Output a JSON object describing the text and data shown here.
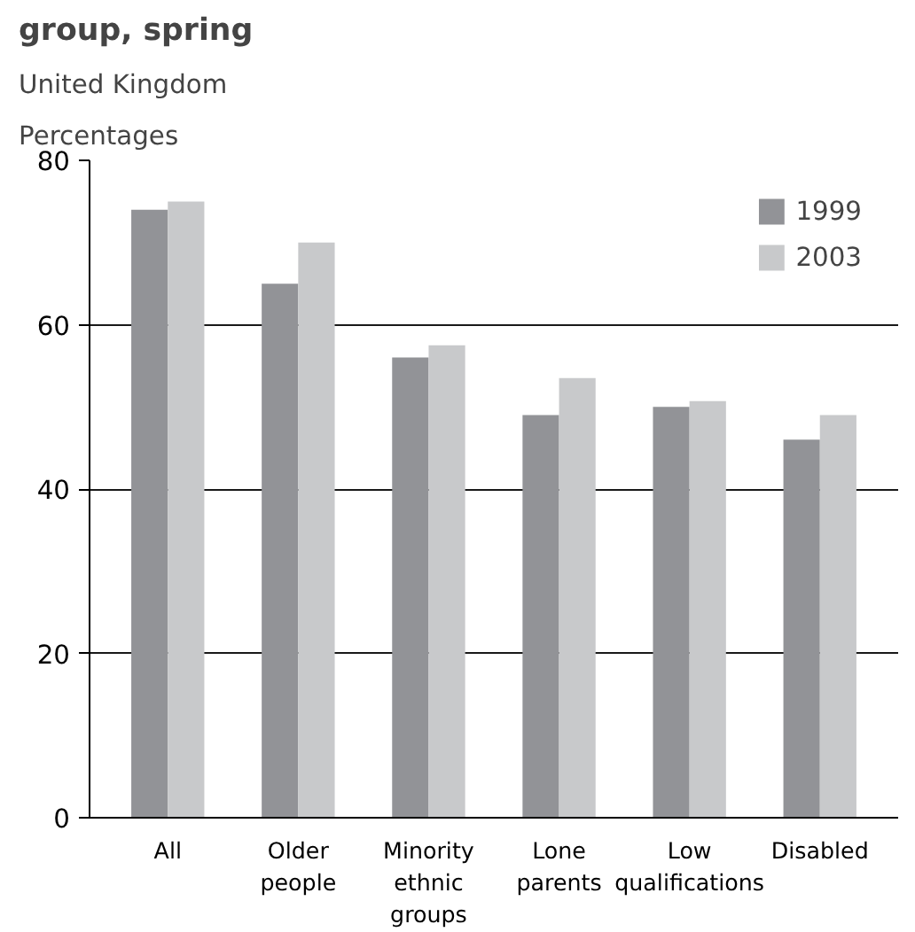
{
  "chart_data": {
    "type": "bar",
    "title": "group, spring",
    "subtitle": "United Kingdom",
    "ylabel": "Percentages",
    "categories": [
      "All",
      "Older people",
      "Minority ethnic groups",
      "Lone parents",
      "Low qualifications",
      "Disabled"
    ],
    "series": [
      {
        "name": "1999",
        "color": "#929397",
        "values": [
          74,
          65,
          56,
          49,
          50,
          46
        ]
      },
      {
        "name": "2003",
        "color": "#c8c9cb",
        "values": [
          75,
          70,
          57.5,
          53.5,
          50.7,
          49
        ]
      }
    ],
    "ylim": [
      0,
      80
    ],
    "yticks": [
      0,
      20,
      40,
      60,
      80
    ],
    "grid": "y",
    "legend": "top right"
  }
}
